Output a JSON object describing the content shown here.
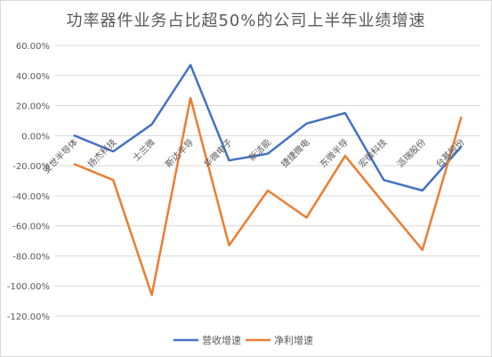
{
  "chart_data": {
    "type": "line",
    "title": "功率器件业务占比超50%的公司上半年业绩增速",
    "categories": [
      "安世半导体",
      "扬杰科技",
      "士兰微",
      "斯达半导",
      "华微电子",
      "新洁能",
      "捷捷微电",
      "东微半导",
      "宏微科技",
      "派瑞股份",
      "台基股份"
    ],
    "series": [
      {
        "name": "营收增速",
        "color": "#4472C4",
        "values": [
          0.0,
          -10.5,
          7.5,
          47.0,
          -16.5,
          -12.0,
          8.0,
          15.0,
          -29.5,
          -36.5,
          -7.5
        ]
      },
      {
        "name": "净利增速",
        "color": "#ED7D31",
        "values": [
          -19.0,
          -29.5,
          -106.0,
          25.0,
          -73.0,
          -36.5,
          -54.5,
          -13.5,
          -45.0,
          -76.0,
          12.0
        ]
      }
    ],
    "y_ticks": [
      "60.00%",
      "40.00%",
      "20.00%",
      "0.00%",
      "-20.00%",
      "-40.00%",
      "-60.00%",
      "-80.00%",
      "-100.00%",
      "-120.00%"
    ],
    "ylim": [
      -120,
      60
    ],
    "grid": true,
    "legend": "bottom"
  }
}
